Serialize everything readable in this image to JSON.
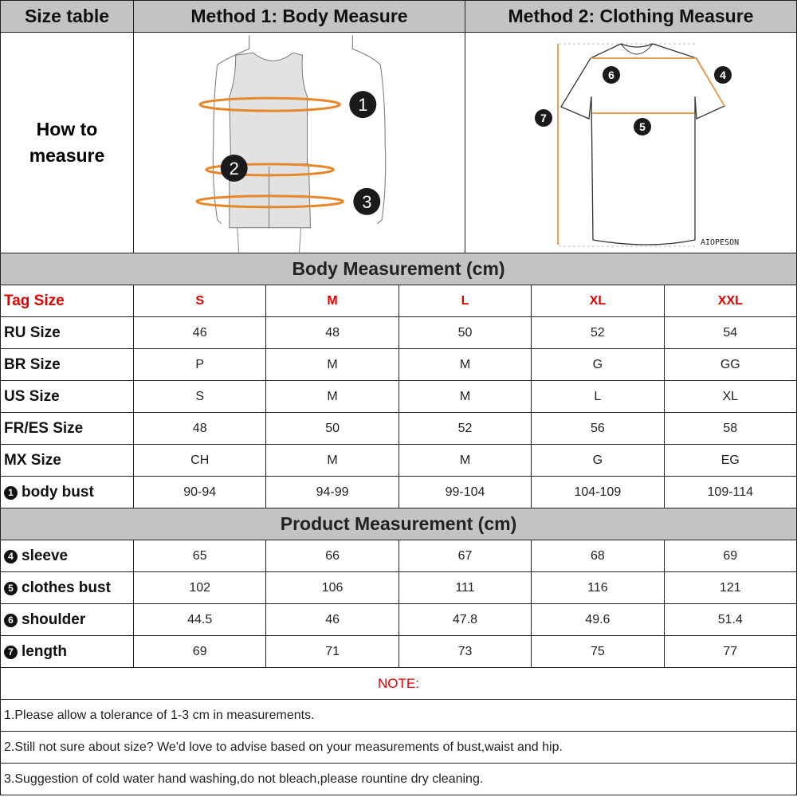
{
  "header": {
    "col1": "Size table",
    "col2": "Method 1: Body  Measure",
    "col3": "Method 2: Clothing Measure"
  },
  "how_to": "How to measure",
  "figure1": {
    "markers": [
      "1",
      "2",
      "3"
    ]
  },
  "figure2": {
    "markers": [
      "4",
      "5",
      "6",
      "7"
    ],
    "brand": "AIOPESON"
  },
  "colors": {
    "header_bg": "#c3c3c3",
    "accent": "#e00000",
    "tape": "#e8862a"
  },
  "body_section": "Body Measurement (cm)",
  "body_rows": [
    {
      "label": "Tag Size",
      "values": [
        "S",
        "M",
        "L",
        "XL",
        "XXL"
      ],
      "red": true
    },
    {
      "label": "RU Size",
      "values": [
        "46",
        "48",
        "50",
        "52",
        "54"
      ]
    },
    {
      "label": "BR Size",
      "values": [
        "P",
        "M",
        "M",
        "G",
        "GG"
      ]
    },
    {
      "label": "US Size",
      "values": [
        "S",
        "M",
        "M",
        "L",
        "XL"
      ]
    },
    {
      "label": "FR/ES Size",
      "values": [
        "48",
        "50",
        "52",
        "56",
        "58"
      ]
    },
    {
      "label": "MX Size",
      "values": [
        "CH",
        "M",
        "M",
        "G",
        "EG"
      ]
    },
    {
      "num": "1",
      "label": "body bust",
      "values": [
        "90-94",
        "94-99",
        "99-104",
        "104-109",
        "109-114"
      ]
    }
  ],
  "product_section": "Product Measurement (cm)",
  "product_rows": [
    {
      "num": "4",
      "label": "sleeve",
      "values": [
        "65",
        "66",
        "67",
        "68",
        "69"
      ]
    },
    {
      "num": "5",
      "label": "clothes bust",
      "values": [
        "102",
        "106",
        "111",
        "116",
        "121"
      ]
    },
    {
      "num": "6",
      "label": "shoulder",
      "values": [
        "44.5",
        "46",
        "47.8",
        "49.6",
        "51.4"
      ]
    },
    {
      "num": "7",
      "label": "length",
      "values": [
        "69",
        "71",
        "73",
        "75",
        "77"
      ]
    }
  ],
  "note_title": "NOTE:",
  "notes": [
    "1.Please allow a tolerance of 1-3 cm in measurements.",
    "2.Still not sure about size? We'd love to advise based on your measurements of bust,waist and hip.",
    "3.Suggestion of cold water hand washing,do not bleach,please rountine dry cleaning."
  ]
}
